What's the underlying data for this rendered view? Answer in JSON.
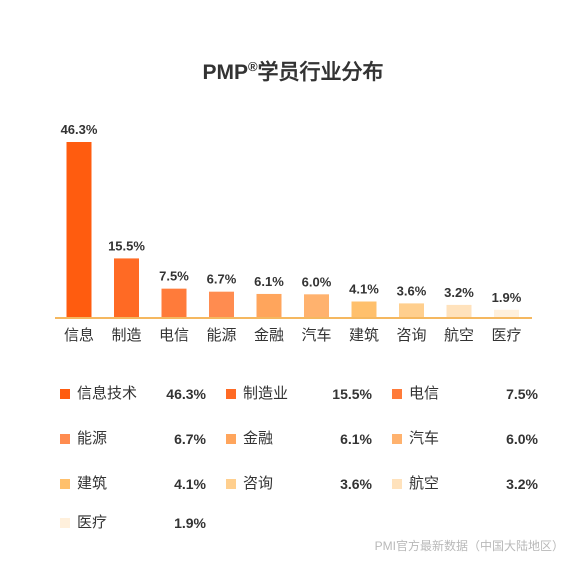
{
  "chart_data": {
    "type": "bar",
    "title": "PMP®学员行业分布",
    "categories": [
      "信息",
      "制造",
      "电信",
      "能源",
      "金融",
      "汽车",
      "建筑",
      "咨询",
      "航空",
      "医疗"
    ],
    "values": [
      46.3,
      15.5,
      7.5,
      6.7,
      6.1,
      6.0,
      4.1,
      3.6,
      3.2,
      1.9
    ],
    "value_labels": [
      "46.3%",
      "15.5%",
      "7.5%",
      "6.7%",
      "6.1%",
      "6.0%",
      "4.1%",
      "3.6%",
      "3.2%",
      "1.9%"
    ],
    "colors": [
      "#ff5c0f",
      "#ff6a24",
      "#ff7b3a",
      "#ff8c50",
      "#ffa55c",
      "#ffb26e",
      "#ffc06c",
      "#ffcf8e",
      "#ffe2bc",
      "#fff0dc"
    ],
    "ylim": [
      0,
      46.3
    ],
    "grid": false,
    "legend": {
      "placement": "bottom",
      "entries": [
        {
          "label": "信息技术",
          "value": "46.3%"
        },
        {
          "label": "制造业",
          "value": "15.5%"
        },
        {
          "label": "电信",
          "value": "7.5%"
        },
        {
          "label": "能源",
          "value": "6.7%"
        },
        {
          "label": "金融",
          "value": "6.1%"
        },
        {
          "label": "汽车",
          "value": "6.0%"
        },
        {
          "label": "建筑",
          "value": "4.1%"
        },
        {
          "label": "咨询",
          "value": "3.6%"
        },
        {
          "label": "航空",
          "value": "3.2%"
        },
        {
          "label": "医疗",
          "value": "1.9%"
        }
      ]
    },
    "axis_color": "#f5b860"
  },
  "title_main": "PMP",
  "title_mark": "®",
  "title_rest": "学员行业分布",
  "source": "PMI官方最新数据（中国大陆地区）"
}
